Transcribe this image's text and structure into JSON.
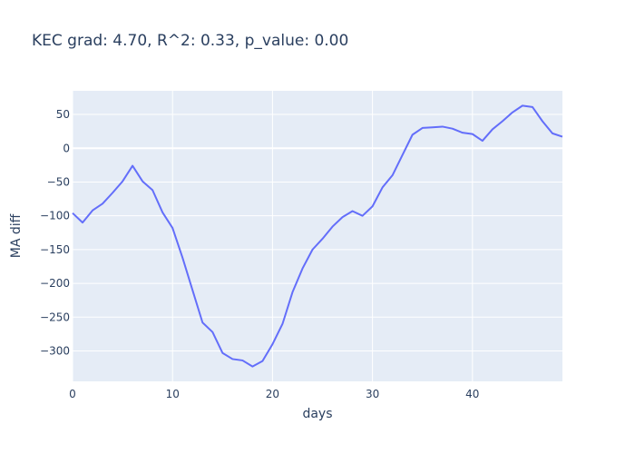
{
  "chart_data": {
    "type": "line",
    "title": "KEC grad: 4.70, R^2: 0.33, p_value: 0.00",
    "xlabel": "days",
    "ylabel": "MA diff",
    "xlim": [
      0,
      49
    ],
    "ylim": [
      -345,
      85
    ],
    "x_ticks": [
      0,
      10,
      20,
      30,
      40
    ],
    "y_ticks": [
      50,
      0,
      -50,
      -100,
      -150,
      -200,
      -250,
      -300
    ],
    "y_tick_labels": [
      "50",
      "0",
      "−50",
      "−100",
      "−150",
      "−200",
      "−250",
      "−300"
    ],
    "grid": true,
    "colors": {
      "plot_bg": "#e5ecf6",
      "line": "#636efa"
    },
    "series": [
      {
        "x": [
          0,
          1,
          2,
          3,
          4,
          5,
          6,
          7,
          8,
          9,
          10,
          11,
          12,
          13,
          14,
          15,
          16,
          17,
          18,
          19,
          20,
          21,
          22,
          23,
          24,
          25,
          26,
          27,
          28,
          29,
          30,
          31,
          32,
          33,
          34,
          35,
          36,
          37,
          38,
          39,
          40,
          41,
          42,
          43,
          44,
          45,
          46,
          47,
          48,
          49
        ],
        "values": [
          -96,
          -110,
          -92,
          -82,
          -66,
          -49,
          -26,
          -49,
          -62,
          -95,
          -118,
          -162,
          -210,
          -258,
          -272,
          -303,
          -312,
          -314,
          -323,
          -315,
          -290,
          -260,
          -213,
          -178,
          -150,
          -134,
          -116,
          -102,
          -93,
          -100,
          -86,
          -58,
          -40,
          -10,
          20,
          30,
          31,
          32,
          29,
          23,
          21,
          11,
          28,
          40,
          53,
          63,
          61,
          40,
          22,
          17
        ]
      }
    ]
  }
}
